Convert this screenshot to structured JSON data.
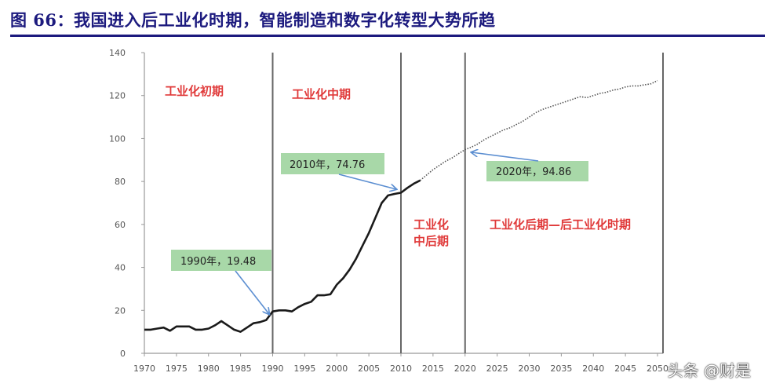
{
  "title": "图 66：我国进入后工业化时期，智能制造和数字化转型大势所趋",
  "watermark": "头条 @财是",
  "colors": {
    "title": "#1c1a7e",
    "phase_label": "#e03a3a",
    "annotation_box": "#a8d8a8",
    "arrow": "#5b8ed1",
    "line": "#1a1a1a"
  },
  "chart_data": {
    "type": "line",
    "title": "",
    "xlabel": "",
    "ylabel": "",
    "xlim": [
      1970,
      2050
    ],
    "ylim": [
      0,
      140
    ],
    "y_ticks": [
      0,
      20,
      40,
      60,
      80,
      100,
      120,
      140
    ],
    "x_ticks": [
      1970,
      1975,
      1980,
      1985,
      1990,
      1995,
      2000,
      2005,
      2010,
      2015,
      2020,
      2025,
      2030,
      2035,
      2040,
      2045,
      2050
    ],
    "grid": false,
    "period_dividers": [
      1990,
      2010,
      2020,
      2050
    ],
    "series": [
      {
        "style": "solid",
        "x": [
          1970,
          1971,
          1972,
          1973,
          1974,
          1975,
          1976,
          1977,
          1978,
          1979,
          1980,
          1981,
          1982,
          1983,
          1984,
          1985,
          1986,
          1987,
          1988,
          1989,
          1990,
          1991,
          1992,
          1993,
          1994,
          1995,
          1996,
          1997,
          1998,
          1999,
          2000,
          2001,
          2002,
          2003,
          2004,
          2005,
          2006,
          2007,
          2008,
          2009,
          2010,
          2011,
          2012,
          2013
        ],
        "y": [
          11,
          11,
          11.5,
          12,
          10.5,
          12.5,
          12.5,
          12.5,
          11,
          11,
          11.5,
          13,
          15,
          13,
          11,
          10,
          12,
          14,
          14.5,
          15.5,
          19.48,
          20,
          20,
          19.5,
          21.5,
          23,
          24,
          27,
          27,
          27.5,
          32,
          35,
          39,
          44,
          50,
          56,
          63,
          70,
          73.5,
          74.2,
          74.76,
          77,
          79,
          80.5
        ]
      },
      {
        "style": "dotted",
        "x": [
          2013,
          2014,
          2015,
          2016,
          2017,
          2018,
          2019,
          2020,
          2021,
          2022,
          2023,
          2024,
          2025,
          2026,
          2027,
          2028,
          2029,
          2030,
          2031,
          2032,
          2033,
          2034,
          2035,
          2036,
          2037,
          2038,
          2039,
          2040,
          2041,
          2042,
          2043,
          2044,
          2045,
          2046,
          2047,
          2048,
          2049,
          2050
        ],
        "y": [
          80.5,
          83,
          85.5,
          87.5,
          89.5,
          91,
          93,
          94.86,
          96,
          97.5,
          99.5,
          101,
          102.5,
          104,
          105,
          106.5,
          108,
          110,
          112,
          113.5,
          114.5,
          115.5,
          116.5,
          117.5,
          118.5,
          119.5,
          119,
          120,
          121,
          121.5,
          122.5,
          123,
          124,
          124.5,
          124.5,
          125,
          125.5,
          127
        ]
      }
    ],
    "phase_labels": [
      "工业化初期",
      "工业化中期",
      "工业化",
      "中后期",
      "工业化后期—后工业化时期"
    ],
    "annotations": [
      {
        "text": "1990年，19.48",
        "x": 1990,
        "y": 19.48
      },
      {
        "text": "2010年，74.76",
        "x": 2010,
        "y": 74.76
      },
      {
        "text": "2020年，94.86",
        "x": 2020,
        "y": 94.86
      }
    ]
  }
}
